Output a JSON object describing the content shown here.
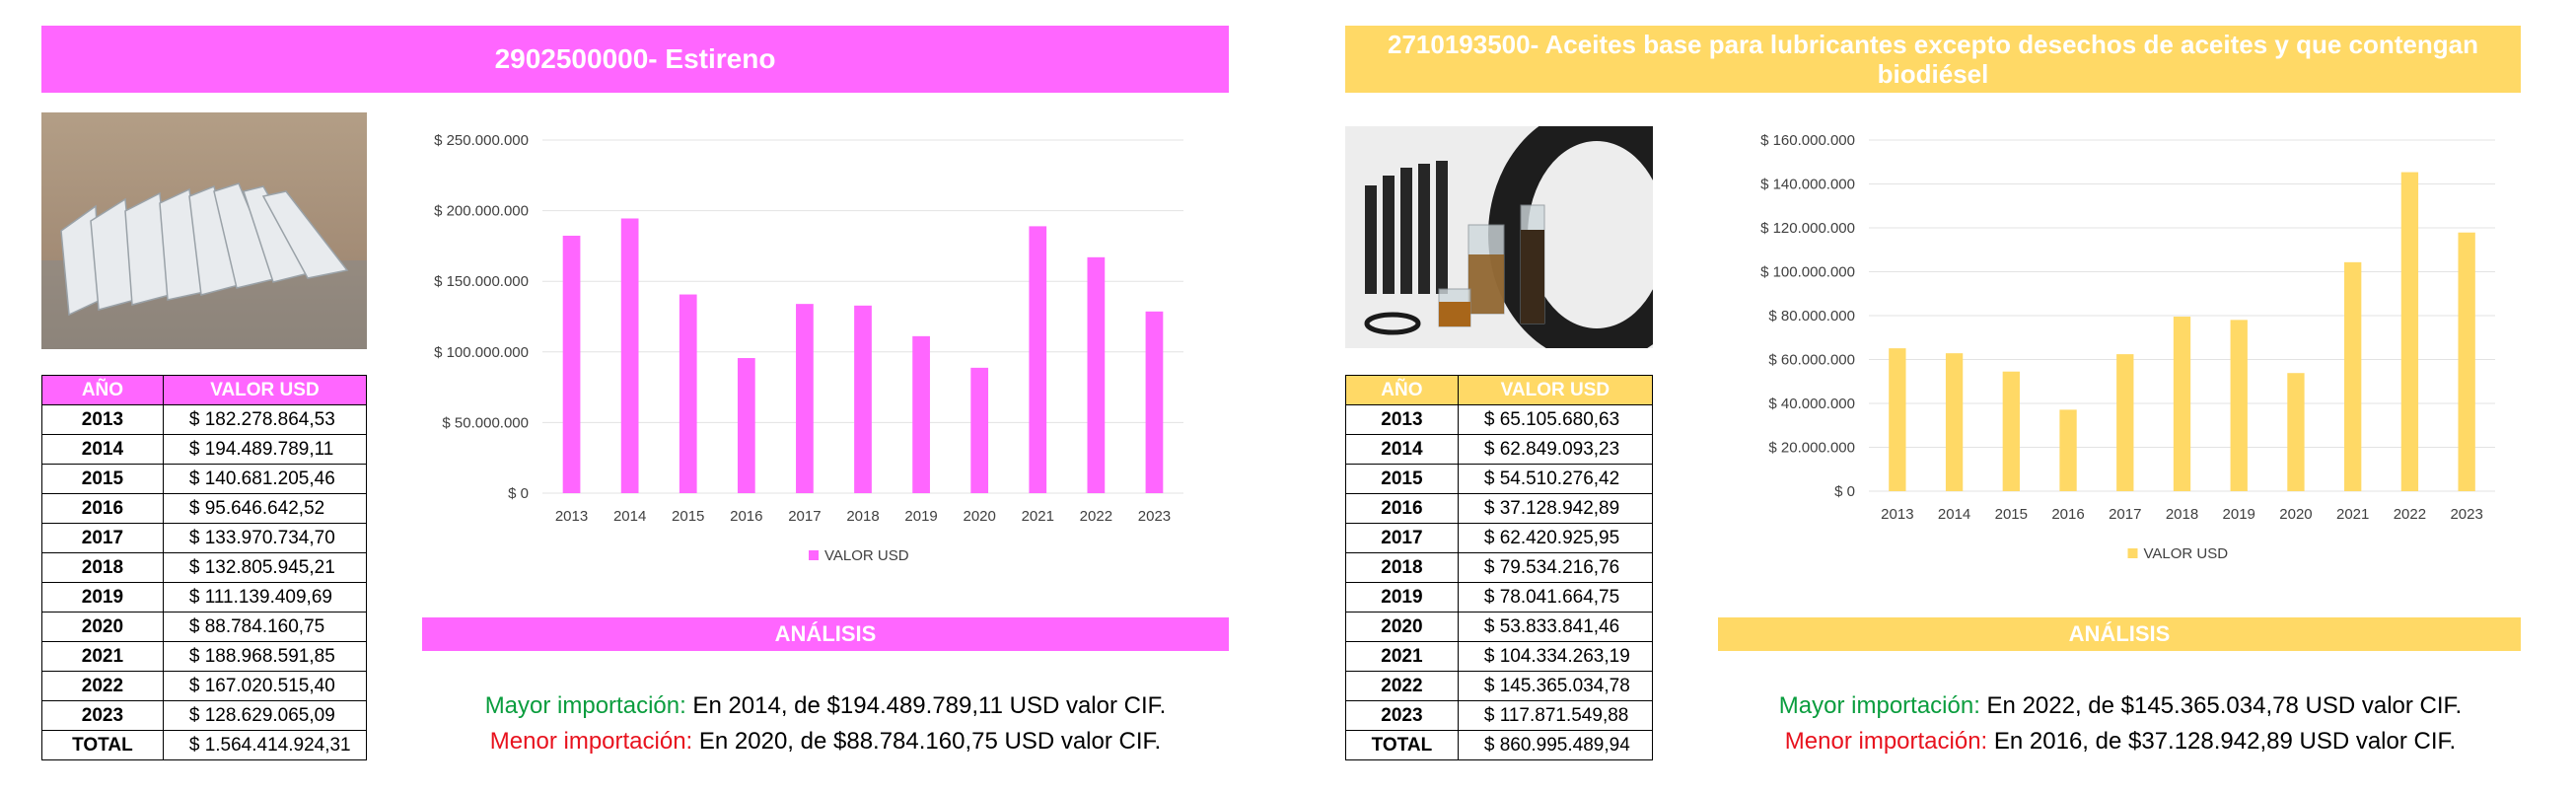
{
  "colors": {
    "pink": "#ff66ff",
    "yellow": "#ffd966",
    "green": "#0a9d3e",
    "red": "#e8121e"
  },
  "left": {
    "title": "2902500000- Estireno",
    "photo_icon": "styrene-sheets-photo",
    "table": {
      "headers": [
        "AÑO",
        "VALOR USD"
      ],
      "rows": [
        {
          "year": "2013",
          "value": "$ 182.278.864,53"
        },
        {
          "year": "2014",
          "value": "$ 194.489.789,11"
        },
        {
          "year": "2015",
          "value": "$ 140.681.205,46"
        },
        {
          "year": "2016",
          "value": "$ 95.646.642,52"
        },
        {
          "year": "2017",
          "value": "$ 133.970.734,70"
        },
        {
          "year": "2018",
          "value": "$ 132.805.945,21"
        },
        {
          "year": "2019",
          "value": "$ 111.139.409,69"
        },
        {
          "year": "2020",
          "value": "$ 88.784.160,75"
        },
        {
          "year": "2021",
          "value": "$ 188.968.591,85"
        },
        {
          "year": "2022",
          "value": "$ 167.020.515,40"
        },
        {
          "year": "2023",
          "value": "$ 128.629.065,09"
        }
      ],
      "total_label": "TOTAL",
      "total_value": "$ 1.564.414.924,31"
    },
    "analysis_title": "ANÁLISIS",
    "mayor_label": "Mayor importación:",
    "mayor_text": " En 2014, de $194.489.789,11 USD valor CIF.",
    "menor_label": "Menor importación:",
    "menor_text": " En 2020, de $88.784.160,75 USD valor CIF."
  },
  "right": {
    "title": "2710193500- Aceites base para lubricantes excepto desechos de aceites y que contengan biodiésel",
    "photo_icon": "lubricant-oil-tires-photo",
    "table": {
      "headers": [
        "AÑO",
        "VALOR USD"
      ],
      "rows": [
        {
          "year": "2013",
          "value": "$ 65.105.680,63"
        },
        {
          "year": "2014",
          "value": "$ 62.849.093,23"
        },
        {
          "year": "2015",
          "value": "$ 54.510.276,42"
        },
        {
          "year": "2016",
          "value": "$ 37.128.942,89"
        },
        {
          "year": "2017",
          "value": "$ 62.420.925,95"
        },
        {
          "year": "2018",
          "value": "$ 79.534.216,76"
        },
        {
          "year": "2019",
          "value": "$ 78.041.664,75"
        },
        {
          "year": "2020",
          "value": "$ 53.833.841,46"
        },
        {
          "year": "2021",
          "value": "$ 104.334.263,19"
        },
        {
          "year": "2022",
          "value": "$ 145.365.034,78"
        },
        {
          "year": "2023",
          "value": "$ 117.871.549,88"
        }
      ],
      "total_label": "TOTAL",
      "total_value": "$ 860.995.489,94"
    },
    "analysis_title": "ANÁLISIS",
    "mayor_label": "Mayor importación:",
    "mayor_text": " En 2022, de $145.365.034,78 USD valor CIF.",
    "menor_label": "Menor importación:",
    "menor_text": " En 2016, de $37.128.942,89 USD valor CIF."
  },
  "chart_data": [
    {
      "type": "bar",
      "categories": [
        "2013",
        "2014",
        "2015",
        "2016",
        "2017",
        "2018",
        "2019",
        "2020",
        "2021",
        "2022",
        "2023"
      ],
      "series": [
        {
          "name": "VALOR USD",
          "values": [
            182278864.53,
            194489789.11,
            140681205.46,
            95646642.52,
            133970734.7,
            132805945.21,
            111139409.69,
            88784160.75,
            188968591.85,
            167020515.4,
            128629065.09
          ]
        }
      ],
      "ylim": [
        0,
        250000000
      ],
      "yticks": [
        0,
        50000000,
        100000000,
        150000000,
        200000000,
        250000000
      ],
      "ytick_labels": [
        "$ 0",
        "$ 50.000.000",
        "$ 100.000.000",
        "$ 150.000.000",
        "$ 200.000.000",
        "$ 250.000.000"
      ],
      "color": "#ff66ff",
      "legend": "bottom",
      "grid": true
    },
    {
      "type": "bar",
      "categories": [
        "2013",
        "2014",
        "2015",
        "2016",
        "2017",
        "2018",
        "2019",
        "2020",
        "2021",
        "2022",
        "2023"
      ],
      "series": [
        {
          "name": "VALOR USD",
          "values": [
            65105680.63,
            62849093.23,
            54510276.42,
            37128942.89,
            62420925.95,
            79534216.76,
            78041664.75,
            53833841.46,
            104334263.19,
            145365034.78,
            117871549.88
          ]
        }
      ],
      "ylim": [
        0,
        160000000
      ],
      "yticks": [
        0,
        20000000,
        40000000,
        60000000,
        80000000,
        100000000,
        120000000,
        140000000,
        160000000
      ],
      "ytick_labels": [
        "$ 0",
        "$ 20.000.000",
        "$ 40.000.000",
        "$ 60.000.000",
        "$ 80.000.000",
        "$ 100.000.000",
        "$ 120.000.000",
        "$ 140.000.000",
        "$ 160.000.000"
      ],
      "color": "#ffd966",
      "legend": "bottom",
      "grid": true
    }
  ]
}
